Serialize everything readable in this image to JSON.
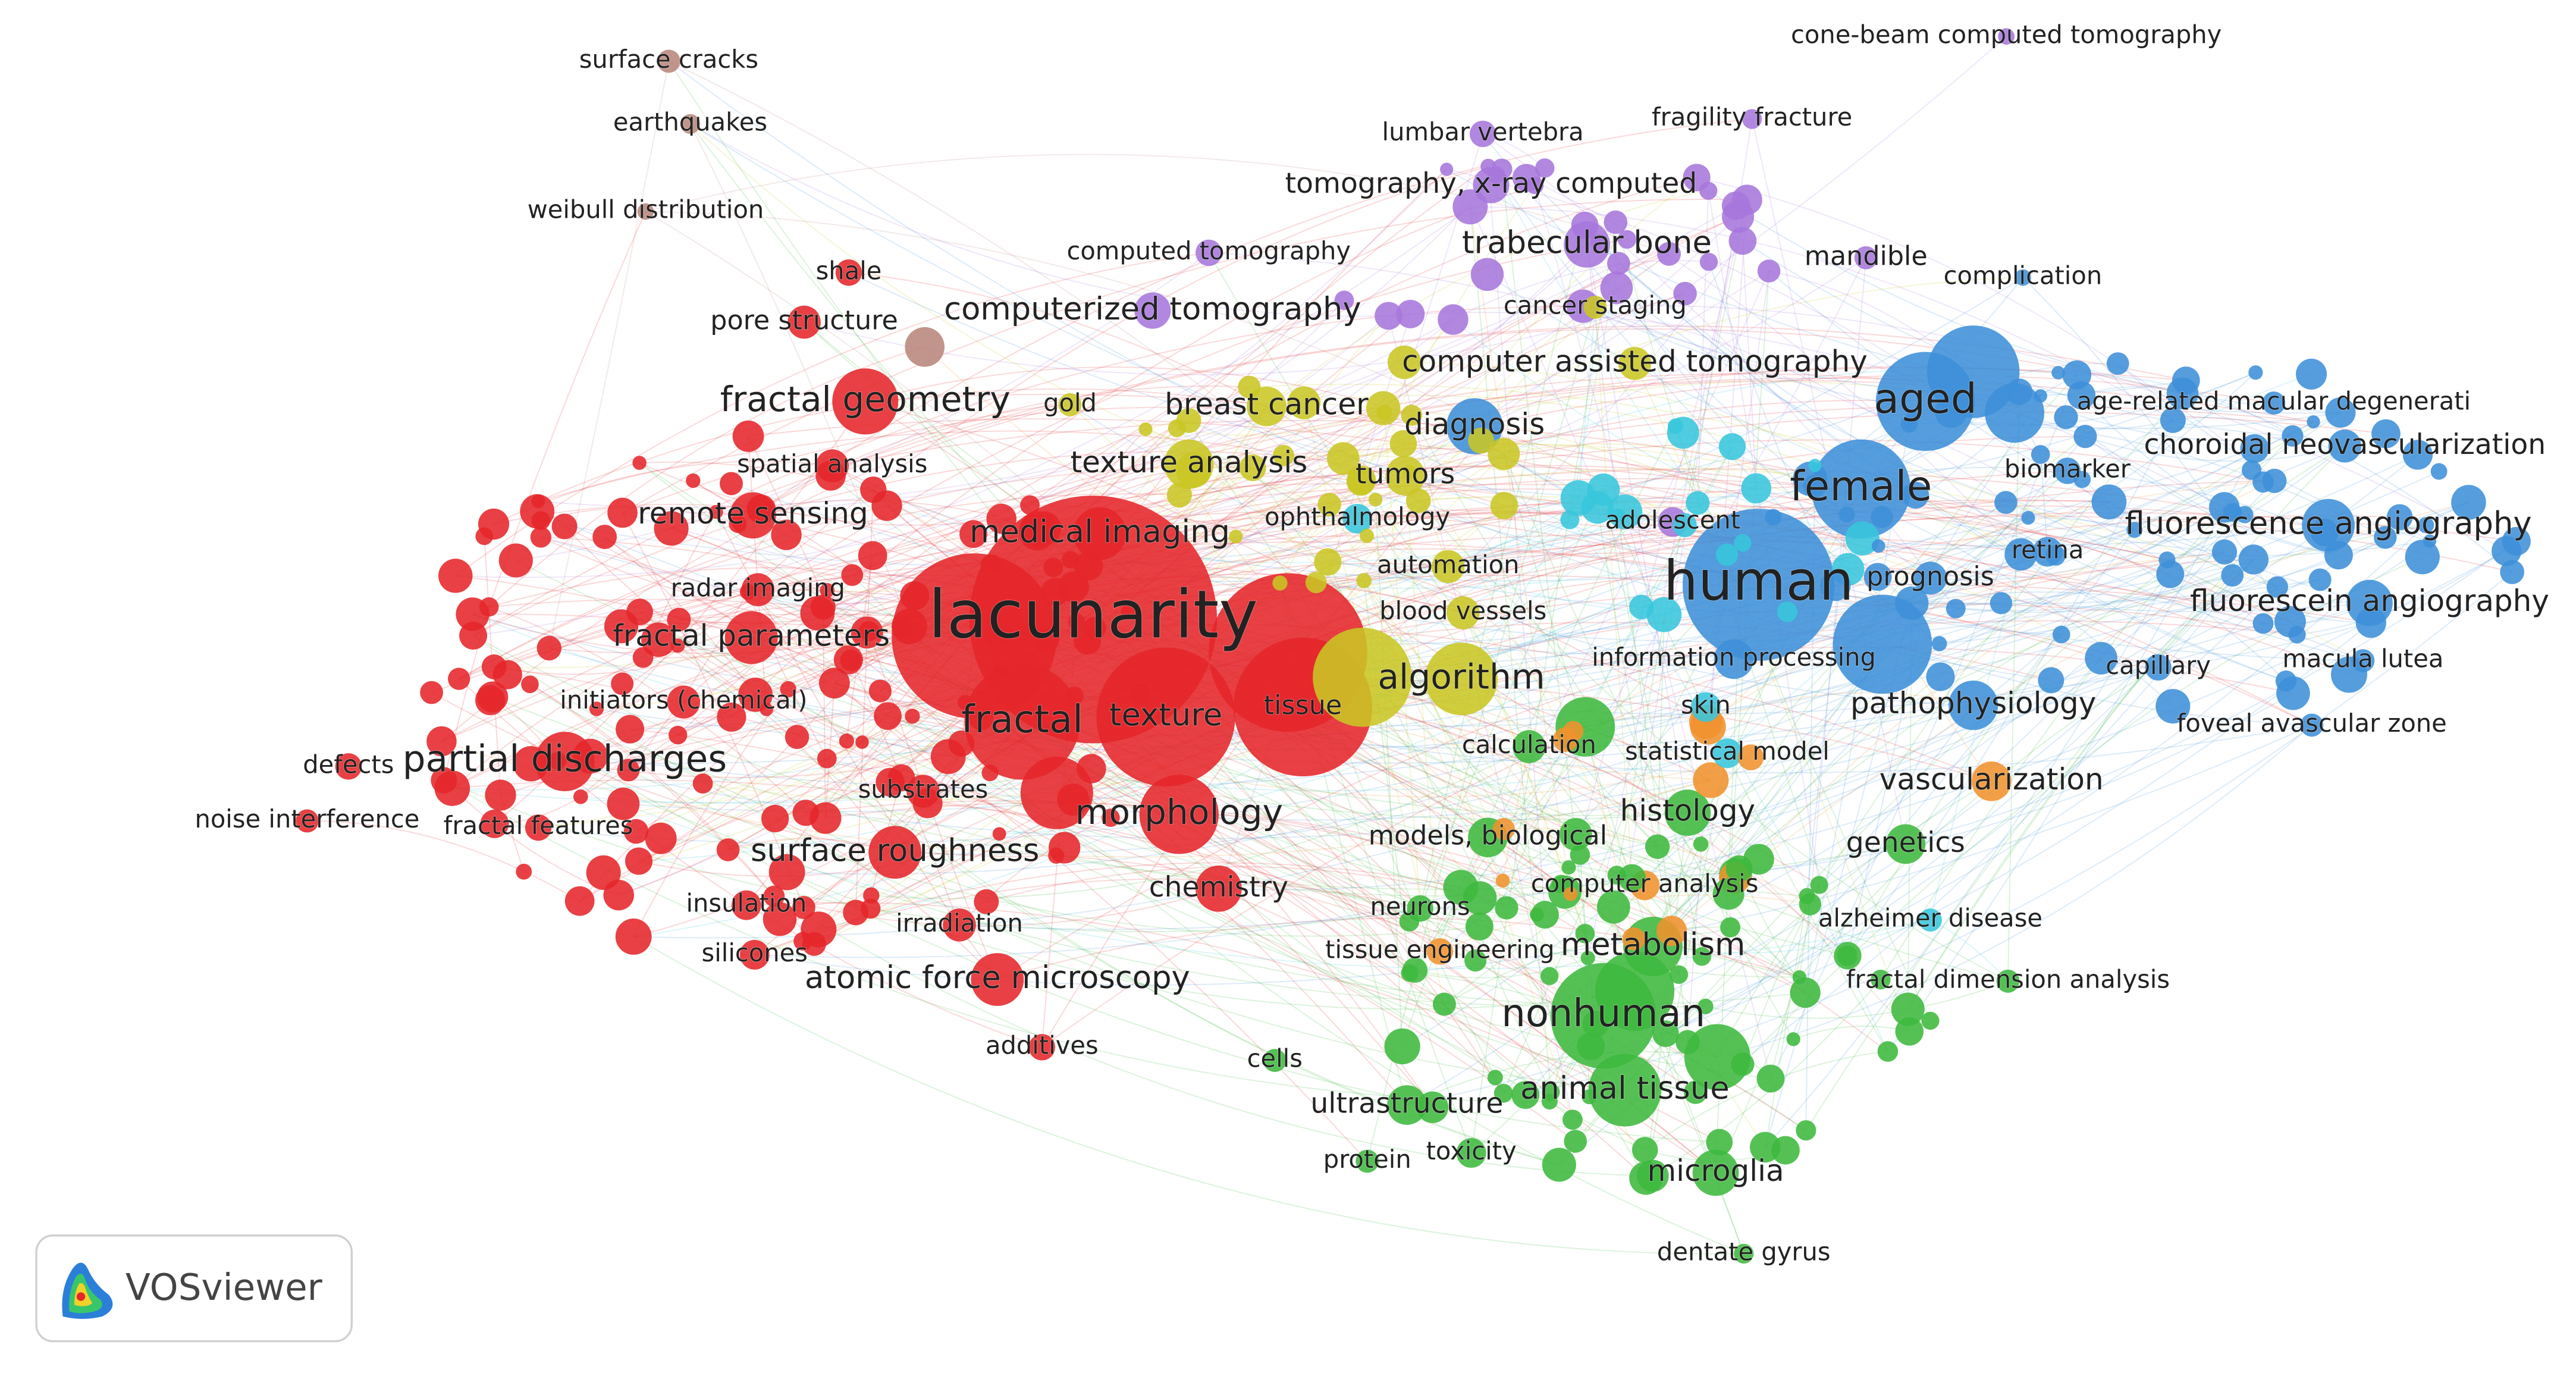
{
  "nodes": [
    {
      "label": "surface cracks"
    },
    {
      "label": "earthquakes"
    },
    {
      "label": "weibull distribution"
    },
    {
      "label": "cone-beam computed tomography"
    },
    {
      "label": "lumbar vertebra"
    },
    {
      "label": "fragility fracture"
    },
    {
      "label": "tomography, x-ray computed"
    },
    {
      "label": "computed tomography"
    },
    {
      "label": "trabecular bone"
    },
    {
      "label": "mandible"
    },
    {
      "label": "complication"
    },
    {
      "label": "shale"
    },
    {
      "label": "pore structure"
    },
    {
      "label": "computerized tomography"
    },
    {
      "label": "cancer staging"
    },
    {
      "label": "computer assisted tomography"
    },
    {
      "label": "fractal geometry"
    },
    {
      "label": "gold"
    },
    {
      "label": "breast cancer"
    },
    {
      "label": "aged"
    },
    {
      "label": "age-related macular degenerati"
    },
    {
      "label": "diagnosis"
    },
    {
      "label": "choroidal neovascularization"
    },
    {
      "label": "texture analysis"
    },
    {
      "label": "spatial analysis"
    },
    {
      "label": "tumors"
    },
    {
      "label": "biomarker"
    },
    {
      "label": "female"
    },
    {
      "label": "remote sensing"
    },
    {
      "label": "ophthalmology"
    },
    {
      "label": "adolescent"
    },
    {
      "label": "fluorescence angiography"
    },
    {
      "label": "medical imaging"
    },
    {
      "label": "retina"
    },
    {
      "label": "automation"
    },
    {
      "label": "human"
    },
    {
      "label": "prognosis"
    },
    {
      "label": "radar imaging"
    },
    {
      "label": "lacunarity"
    },
    {
      "label": "fluorescein angiography"
    },
    {
      "label": "blood vessels"
    },
    {
      "label": "fractal parameters"
    },
    {
      "label": "algorithm"
    },
    {
      "label": "information processing"
    },
    {
      "label": "capillary"
    },
    {
      "label": "macula lutea"
    },
    {
      "label": "initiators (chemical)"
    },
    {
      "label": "tissue"
    },
    {
      "label": "texture"
    },
    {
      "label": "fractal"
    },
    {
      "label": "skin"
    },
    {
      "label": "pathophysiology"
    },
    {
      "label": "foveal avascular zone"
    },
    {
      "label": "calculation"
    },
    {
      "label": "statistical model"
    },
    {
      "label": "partial discharges"
    },
    {
      "label": "defects"
    },
    {
      "label": "vascularization"
    },
    {
      "label": "substrates"
    },
    {
      "label": "noise interference"
    },
    {
      "label": "morphology"
    },
    {
      "label": "histology"
    },
    {
      "label": "fractal features"
    },
    {
      "label": "models, biological"
    },
    {
      "label": "genetics"
    },
    {
      "label": "surface roughness"
    },
    {
      "label": "computer analysis"
    },
    {
      "label": "chemistry"
    },
    {
      "label": "neurons"
    },
    {
      "label": "insulation"
    },
    {
      "label": "irradiation"
    },
    {
      "label": "alzheimer disease"
    },
    {
      "label": "metabolism"
    },
    {
      "label": "tissue engineering"
    },
    {
      "label": "silicones"
    },
    {
      "label": "atomic force microscopy"
    },
    {
      "label": "fractal dimension analysis"
    },
    {
      "label": "nonhuman"
    },
    {
      "label": "additives"
    },
    {
      "label": "cells"
    },
    {
      "label": "animal tissue"
    },
    {
      "label": "ultrastructure"
    },
    {
      "label": "toxicity"
    },
    {
      "label": "protein"
    },
    {
      "label": "microglia"
    },
    {
      "label": "dentate gyrus"
    }
  ],
  "logo": {
    "text": "VOSviewer"
  }
}
